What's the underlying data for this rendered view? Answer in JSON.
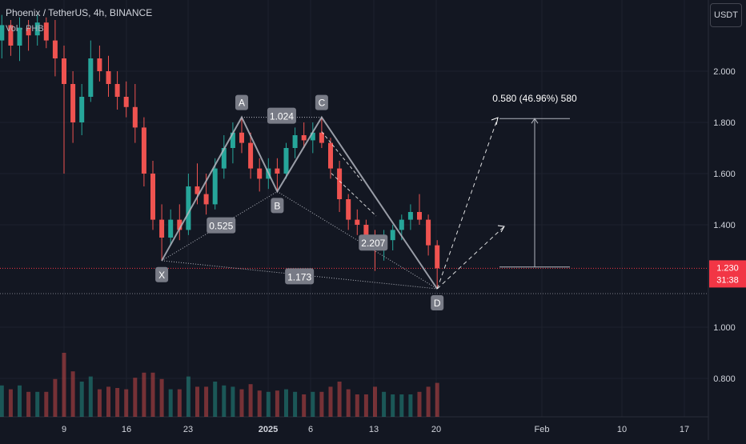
{
  "header": {
    "title": "Phoenix / TetherUS, 4h, BINANCE",
    "volume_label": "Vol · PHB"
  },
  "currency_button": {
    "label": "USDT"
  },
  "price_badge": {
    "price": "1.230",
    "countdown": "31:38"
  },
  "colors": {
    "background": "#131722",
    "up": "#26a69a",
    "down": "#ef5350",
    "pattern": "#b2b5be",
    "price_line": "#f23645",
    "text": "#d1d4dc"
  },
  "chart_data": {
    "type": "candlestick",
    "symbol": "PHBUSDT",
    "timeframe": "4h",
    "y_ticks": [
      "0.800",
      "1.000",
      "1.400",
      "1.600",
      "1.800",
      "2.000"
    ],
    "x_ticks": [
      "9",
      "16",
      "23",
      "2025",
      "6",
      "13",
      "20",
      "Feb",
      "10",
      "17"
    ],
    "last_price": 1.23,
    "ylim": [
      0.7,
      2.23
    ],
    "harmonic_pattern": {
      "points": [
        {
          "label": "X",
          "date": "2024-12-20",
          "price": 1.26
        },
        {
          "label": "A",
          "date": "2024-12-29",
          "price": 1.82
        },
        {
          "label": "B",
          "date": "2025-01-02",
          "price": 1.53
        },
        {
          "label": "C",
          "date": "2025-01-07",
          "price": 1.82
        },
        {
          "label": "D",
          "date": "2025-01-20",
          "price": 1.15
        }
      ],
      "ratios": [
        "0.525",
        "1.024",
        "2.207",
        "1.173"
      ]
    },
    "projection": {
      "label": "0.580 (46.96%) 580",
      "from_price": 1.235,
      "to_price": 1.815
    },
    "candles": [
      [
        "2024-12-01",
        2.15,
        2.2,
        2.08,
        2.12
      ],
      [
        "2024-12-02",
        2.12,
        2.22,
        2.05,
        2.18
      ],
      [
        "2024-12-03",
        2.18,
        2.2,
        2.06,
        2.1
      ],
      [
        "2024-12-04",
        2.1,
        2.21,
        2.04,
        2.17
      ],
      [
        "2024-12-05",
        2.17,
        2.2,
        2.08,
        2.14
      ],
      [
        "2024-12-06",
        2.14,
        2.22,
        2.1,
        2.19
      ],
      [
        "2024-12-07",
        2.19,
        2.21,
        2.09,
        2.12
      ],
      [
        "2024-12-08",
        2.12,
        2.2,
        1.98,
        2.05
      ],
      [
        "2024-12-09",
        2.05,
        2.1,
        1.6,
        1.95
      ],
      [
        "2024-12-10",
        1.95,
        2.0,
        1.72,
        1.8
      ],
      [
        "2024-12-11",
        1.8,
        1.95,
        1.75,
        1.9
      ],
      [
        "2024-12-12",
        1.9,
        2.12,
        1.88,
        2.05
      ],
      [
        "2024-12-13",
        2.05,
        2.1,
        1.96,
        2.0
      ],
      [
        "2024-12-14",
        2.0,
        2.06,
        1.9,
        1.95
      ],
      [
        "2024-12-15",
        1.95,
        2.0,
        1.85,
        1.9
      ],
      [
        "2024-12-16",
        1.9,
        1.96,
        1.82,
        1.86
      ],
      [
        "2024-12-17",
        1.86,
        1.95,
        1.72,
        1.78
      ],
      [
        "2024-12-18",
        1.78,
        1.82,
        1.55,
        1.6
      ],
      [
        "2024-12-19",
        1.6,
        1.65,
        1.38,
        1.42
      ],
      [
        "2024-12-20",
        1.42,
        1.48,
        1.26,
        1.35
      ],
      [
        "2024-12-21",
        1.35,
        1.46,
        1.32,
        1.42
      ],
      [
        "2024-12-22",
        1.42,
        1.48,
        1.34,
        1.38
      ],
      [
        "2024-12-23",
        1.38,
        1.6,
        1.36,
        1.55
      ],
      [
        "2024-12-24",
        1.55,
        1.64,
        1.48,
        1.52
      ],
      [
        "2024-12-25",
        1.52,
        1.6,
        1.44,
        1.48
      ],
      [
        "2024-12-26",
        1.48,
        1.66,
        1.46,
        1.62
      ],
      [
        "2024-12-27",
        1.62,
        1.75,
        1.58,
        1.7
      ],
      [
        "2024-12-28",
        1.7,
        1.8,
        1.64,
        1.76
      ],
      [
        "2024-12-29",
        1.76,
        1.82,
        1.68,
        1.72
      ],
      [
        "2024-12-30",
        1.72,
        1.76,
        1.58,
        1.62
      ],
      [
        "2024-12-31",
        1.62,
        1.66,
        1.53,
        1.58
      ],
      [
        "2025-01-01",
        1.58,
        1.66,
        1.54,
        1.62
      ],
      [
        "2025-01-02",
        1.62,
        1.66,
        1.53,
        1.6
      ],
      [
        "2025-01-03",
        1.6,
        1.72,
        1.58,
        1.7
      ],
      [
        "2025-01-04",
        1.7,
        1.78,
        1.66,
        1.75
      ],
      [
        "2025-01-05",
        1.75,
        1.8,
        1.7,
        1.73
      ],
      [
        "2025-01-06",
        1.73,
        1.8,
        1.68,
        1.76
      ],
      [
        "2025-01-07",
        1.76,
        1.82,
        1.7,
        1.72
      ],
      [
        "2025-01-08",
        1.72,
        1.74,
        1.58,
        1.62
      ],
      [
        "2025-01-09",
        1.62,
        1.65,
        1.45,
        1.5
      ],
      [
        "2025-01-10",
        1.5,
        1.52,
        1.38,
        1.42
      ],
      [
        "2025-01-11",
        1.42,
        1.46,
        1.36,
        1.4
      ],
      [
        "2025-01-12",
        1.4,
        1.42,
        1.32,
        1.35
      ],
      [
        "2025-01-13",
        1.35,
        1.38,
        1.22,
        1.3
      ],
      [
        "2025-01-14",
        1.3,
        1.38,
        1.26,
        1.34
      ],
      [
        "2025-01-15",
        1.34,
        1.4,
        1.3,
        1.38
      ],
      [
        "2025-01-16",
        1.38,
        1.44,
        1.34,
        1.42
      ],
      [
        "2025-01-17",
        1.42,
        1.48,
        1.38,
        1.45
      ],
      [
        "2025-01-18",
        1.45,
        1.52,
        1.4,
        1.42
      ],
      [
        "2025-01-19",
        1.42,
        1.44,
        1.28,
        1.32
      ],
      [
        "2025-01-20",
        1.32,
        1.34,
        1.15,
        1.23
      ]
    ]
  }
}
